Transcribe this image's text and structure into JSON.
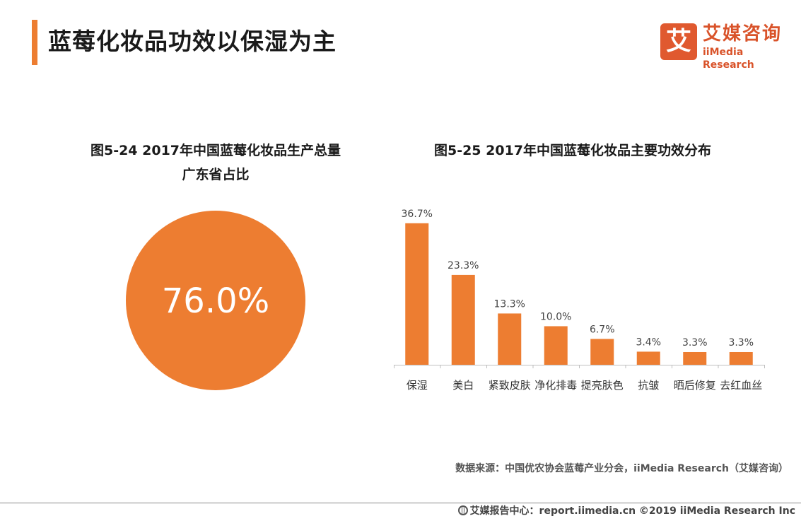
{
  "header": {
    "title": "蓝莓化妆品功效以保湿为主",
    "logo_mark": "艾",
    "logo_cn": "艾媒咨询",
    "logo_en": "iiMedia Research"
  },
  "left_chart": {
    "title_line1": "图5-24  2017年中国蓝莓化妆品生产总量",
    "title_line2": "广东省占比"
  },
  "right_chart": {
    "title": "图5-25  2017年中国蓝莓化妆品主要功效分布"
  },
  "chart_data": [
    {
      "type": "pie",
      "title": "图5-24  2017年中国蓝莓化妆品生产总量广东省占比",
      "values": [
        76.0
      ],
      "labels": [
        "76.0%"
      ],
      "color": "#ED7D31"
    },
    {
      "type": "bar",
      "title": "图5-25  2017年中国蓝莓化妆品主要功效分布",
      "categories": [
        "保湿",
        "美白",
        "紧致皮肤",
        "净化排毒",
        "提亮肤色",
        "抗皱",
        "晒后修复",
        "去红血丝"
      ],
      "values": [
        36.7,
        23.3,
        13.3,
        10.0,
        6.7,
        3.4,
        3.3,
        3.3
      ],
      "labels": [
        "36.7%",
        "23.3%",
        "13.3%",
        "10.0%",
        "6.7%",
        "3.4%",
        "3.3%",
        "3.3%"
      ],
      "ylim": [
        0,
        40
      ],
      "grid": false,
      "color": "#ED7D31"
    }
  ],
  "footer": {
    "source": "数据来源：中国优农协会蓝莓产业分会，iiMedia Research（艾媒咨询）",
    "copyright": "艾媒报告中心：report.iimedia.cn  ©2019  iiMedia Research Inc"
  }
}
